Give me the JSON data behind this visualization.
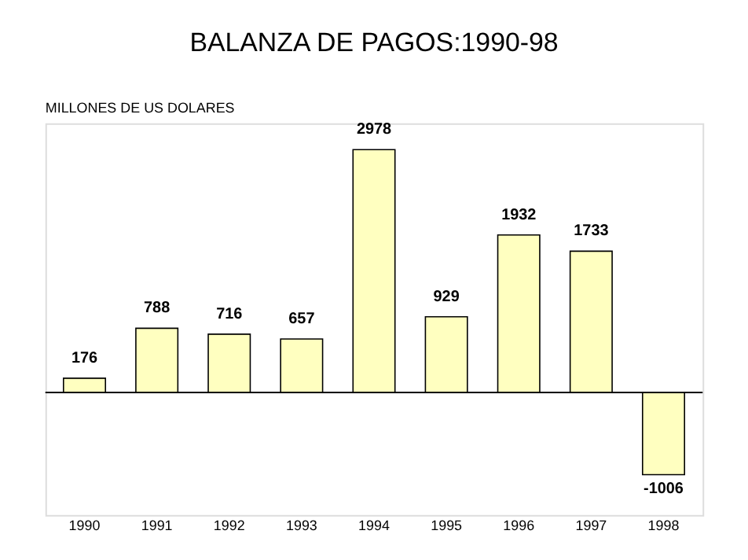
{
  "chart_data": {
    "type": "bar",
    "title": "BALANZA DE PAGOS:1990-98",
    "ylabel": "MILLONES DE US DOLARES",
    "categories": [
      "1990",
      "1991",
      "1992",
      "1993",
      "1994",
      "1995",
      "1996",
      "1997",
      "1998"
    ],
    "values": [
      176,
      788,
      716,
      657,
      2978,
      929,
      1932,
      1733,
      -1006
    ],
    "color": "#ffffc0",
    "data_labels": true,
    "ylim": [
      -1500,
      3300
    ],
    "grid": false
  }
}
